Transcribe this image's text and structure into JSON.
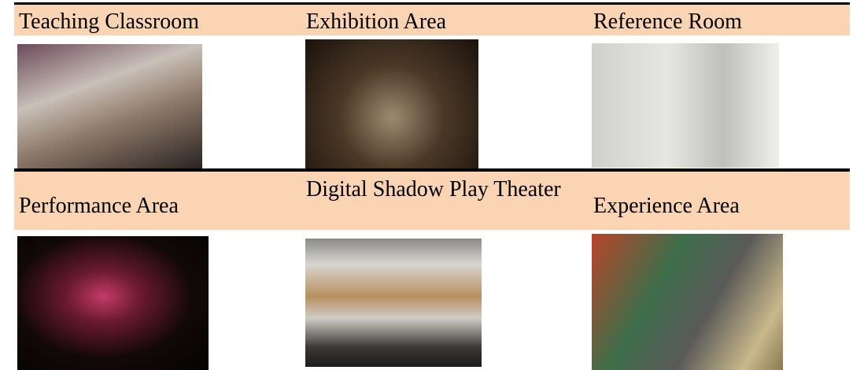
{
  "table": {
    "rows": [
      [
        "Teaching Classroom",
        "Exhibition Area",
        "Reference Room"
      ],
      [
        "Performance Area",
        "Digital Shadow Play Theater",
        "Experience Area"
      ]
    ]
  }
}
